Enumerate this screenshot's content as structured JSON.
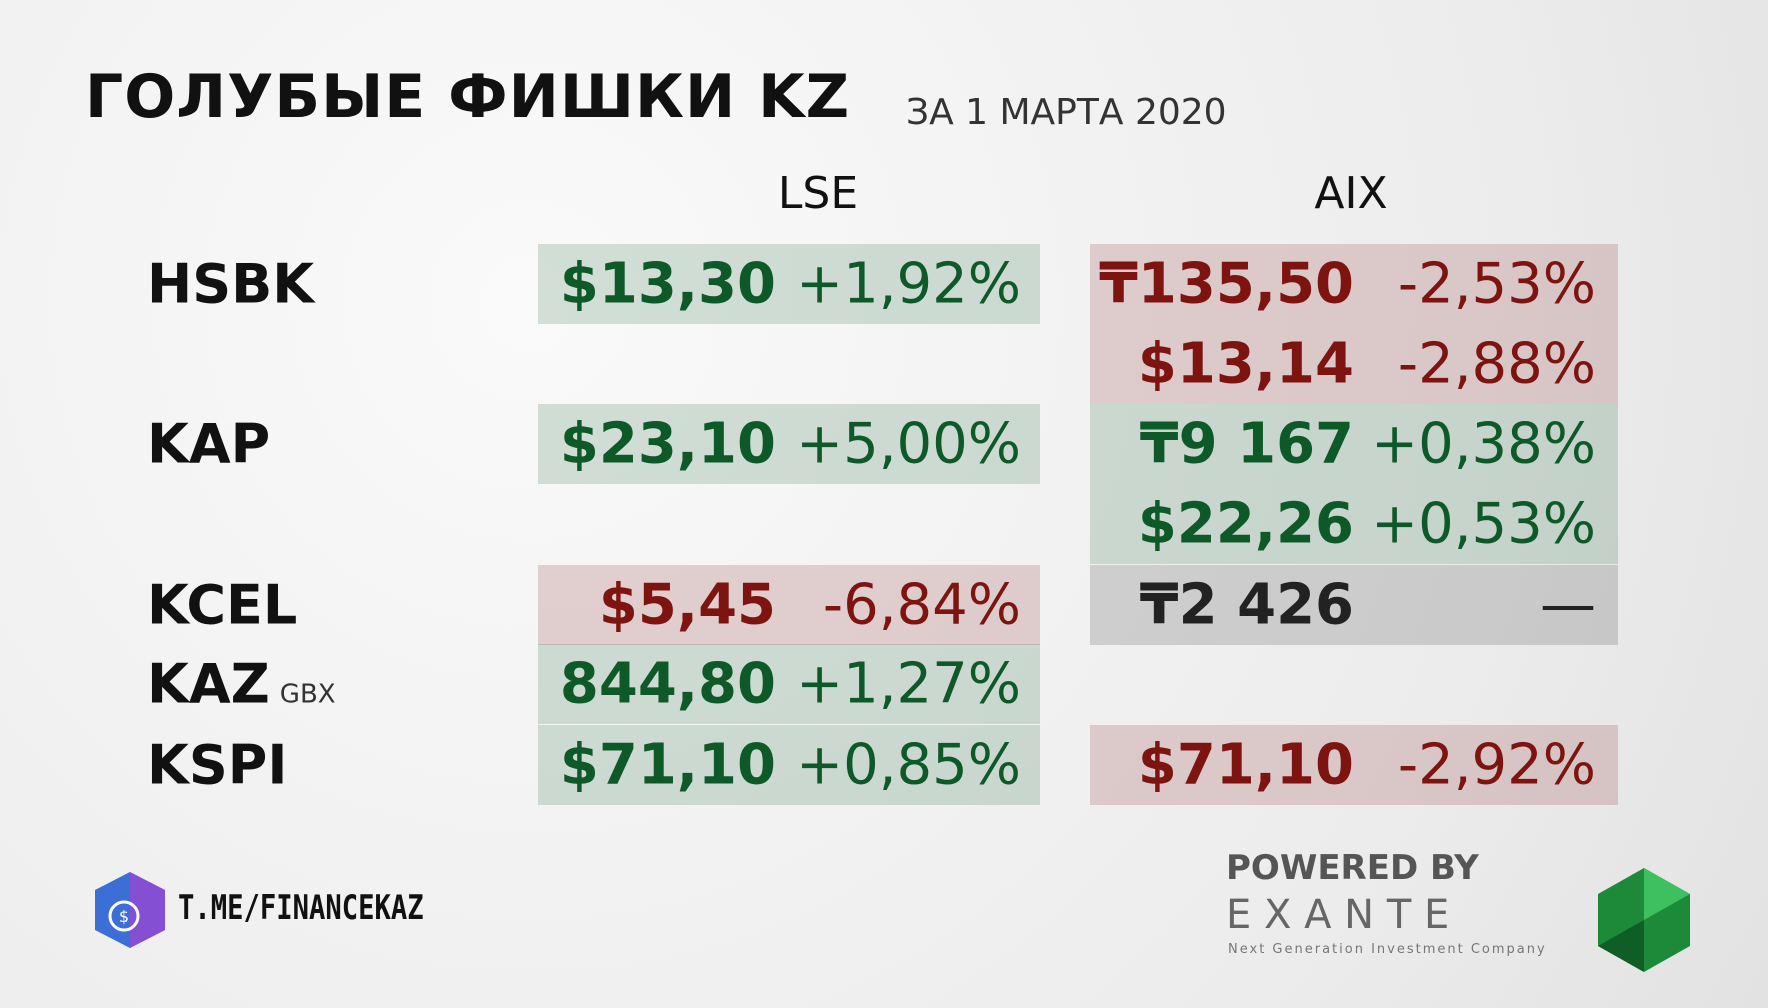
{
  "header": {
    "title": "ГОЛУБЫЕ ФИШКИ KZ",
    "subtitle": "ЗА 1 МАРТА 2020"
  },
  "columns": [
    "LSE",
    "AIX"
  ],
  "rows": [
    {
      "ticker": "HSBK",
      "lse": [
        {
          "price": "$13,30",
          "change": "+1,92%",
          "color": "#0d5a28"
        }
      ],
      "aix": [
        {
          "price": "₸135,50",
          "change": "-2,53%",
          "color": "#7d1410"
        },
        {
          "price": "$13,14",
          "change": "-2,88%",
          "color": "#7d1410"
        }
      ]
    },
    {
      "ticker": "KAP",
      "lse": [
        {
          "price": "$23,10",
          "change": "+5,00%",
          "color": "#0d5a28"
        }
      ],
      "aix": [
        {
          "price": "₸9 167",
          "change": "+0,38%",
          "color": "#0d5a28"
        },
        {
          "price": "$22,26",
          "change": "+0,53%",
          "color": "#0d5a28"
        }
      ]
    },
    {
      "ticker": "KCEL",
      "lse": [
        {
          "price": "$5,45",
          "change": "-6,84%",
          "color": "#7d1410"
        }
      ],
      "aix": [
        {
          "price": "₸2 426",
          "change": "—",
          "color": "#222222"
        }
      ]
    },
    {
      "ticker": "KAZ",
      "unit": "GBX",
      "lse": [
        {
          "price": "844,80",
          "change": "+1,27%",
          "color": "#0d5a28"
        }
      ],
      "aix": []
    },
    {
      "ticker": "KSPI",
      "lse": [
        {
          "price": "$71,10",
          "change": "+0,85%",
          "color": "#0d5a28"
        }
      ],
      "aix": [
        {
          "price": "$71,10",
          "change": "-2,92%",
          "color": "#7d1410"
        }
      ]
    }
  ],
  "footer": {
    "channel": "T.ME/FINANCEKAZ",
    "powered": "POWERED BY",
    "brand": "E X A N T E",
    "tagline": "Next Generation Investment Company"
  }
}
